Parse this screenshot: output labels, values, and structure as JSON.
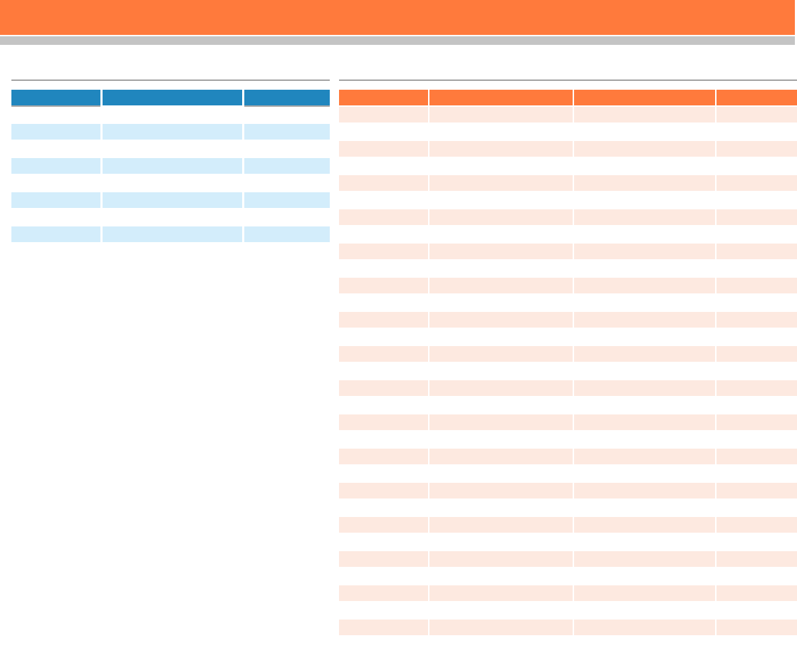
{
  "colors": {
    "header_orange": "#ff7a3c",
    "sub_bar_gray": "#c4c4c4",
    "blue_header": "#2086be",
    "blue_row_alt": "#d3edfb",
    "orange_row_alt": "#fde9e0"
  },
  "left_table": {
    "headers": [
      "",
      "",
      ""
    ],
    "rows": [
      [
        "",
        "",
        ""
      ],
      [
        "",
        "",
        ""
      ],
      [
        "",
        "",
        ""
      ],
      [
        "",
        "",
        ""
      ],
      [
        "",
        "",
        ""
      ],
      [
        "",
        "",
        ""
      ],
      [
        "",
        "",
        ""
      ],
      [
        "",
        "",
        ""
      ]
    ]
  },
  "right_table": {
    "headers": [
      "",
      "",
      "",
      ""
    ],
    "rows": [
      [
        "",
        "",
        "",
        ""
      ],
      [
        "",
        "",
        "",
        ""
      ],
      [
        "",
        "",
        "",
        ""
      ],
      [
        "",
        "",
        "",
        ""
      ],
      [
        "",
        "",
        "",
        ""
      ],
      [
        "",
        "",
        "",
        ""
      ],
      [
        "",
        "",
        "",
        ""
      ],
      [
        "",
        "",
        "",
        ""
      ],
      [
        "",
        "",
        "",
        ""
      ],
      [
        "",
        "",
        "",
        ""
      ],
      [
        "",
        "",
        "",
        ""
      ],
      [
        "",
        "",
        "",
        ""
      ],
      [
        "",
        "",
        "",
        ""
      ],
      [
        "",
        "",
        "",
        ""
      ],
      [
        "",
        "",
        "",
        ""
      ],
      [
        "",
        "",
        "",
        ""
      ],
      [
        "",
        "",
        "",
        ""
      ],
      [
        "",
        "",
        "",
        ""
      ],
      [
        "",
        "",
        "",
        ""
      ],
      [
        "",
        "",
        "",
        ""
      ],
      [
        "",
        "",
        "",
        ""
      ],
      [
        "",
        "",
        "",
        ""
      ],
      [
        "",
        "",
        "",
        ""
      ],
      [
        "",
        "",
        "",
        ""
      ],
      [
        "",
        "",
        "",
        ""
      ],
      [
        "",
        "",
        "",
        ""
      ],
      [
        "",
        "",
        "",
        ""
      ],
      [
        "",
        "",
        "",
        ""
      ],
      [
        "",
        "",
        "",
        ""
      ],
      [
        "",
        "",
        "",
        ""
      ],
      [
        "",
        "",
        "",
        ""
      ]
    ]
  }
}
